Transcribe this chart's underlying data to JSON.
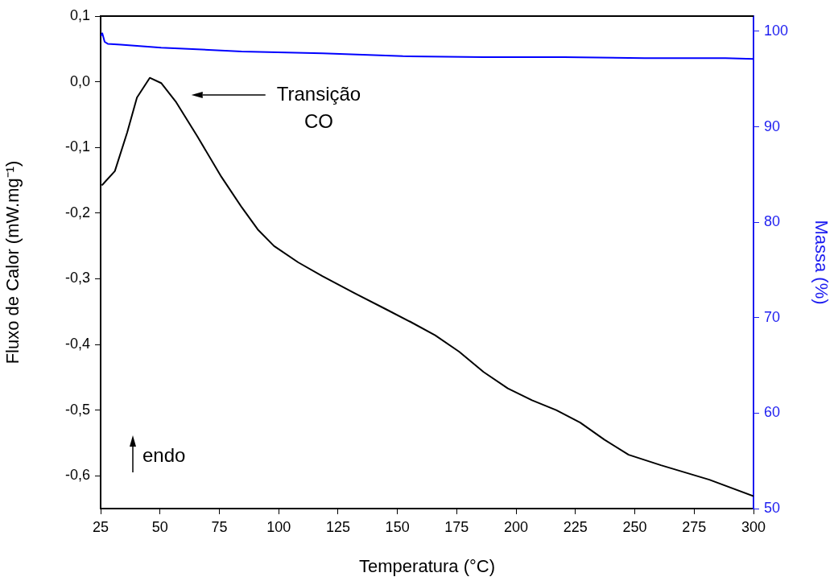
{
  "chart_data": {
    "type": "line",
    "xlabel": "Temperatura (°C)",
    "ylabel": "Fluxo de Calor (mW.mg⁻¹)",
    "y2label": "Massa (%)",
    "xlim": [
      25,
      300
    ],
    "xticks": [
      25,
      50,
      75,
      100,
      125,
      150,
      175,
      200,
      225,
      250,
      275,
      300
    ],
    "ylim": [
      -0.65,
      0.1
    ],
    "yticks": [
      {
        "value": -0.6,
        "label": "-0,6"
      },
      {
        "value": -0.5,
        "label": "-0,5"
      },
      {
        "value": -0.4,
        "label": "-0,4"
      },
      {
        "value": -0.3,
        "label": "-0,3"
      },
      {
        "value": -0.2,
        "label": "-0,2"
      },
      {
        "value": -0.1,
        "label": "-0,1"
      },
      {
        "value": 0,
        "label": "0,0"
      },
      {
        "value": 0.1,
        "label": "0,1"
      }
    ],
    "y2lim": [
      50,
      101.6
    ],
    "y2ticks": [
      50,
      60,
      70,
      80,
      90,
      100
    ],
    "grid": false,
    "legend": false,
    "marker": "none",
    "line_style": "solid",
    "series": [
      {
        "color": "#000000",
        "x": [
          25.7,
          31,
          36.2,
          40.3,
          45.7,
          50.5,
          56.6,
          65.7,
          75.9,
          84.4,
          91.2,
          98,
          108.2,
          118.4,
          132,
          145.5,
          155.7,
          165.9,
          176,
          186.3,
          196.5,
          206.7,
          216.9,
          227,
          237.2,
          247.4,
          261,
          281.4,
          300
        ],
        "values": [
          -0.157,
          -0.136,
          -0.077,
          -0.024,
          0.006,
          -0.002,
          -0.03,
          -0.083,
          -0.145,
          -0.191,
          -0.225,
          -0.25,
          -0.275,
          -0.296,
          -0.322,
          -0.347,
          -0.366,
          -0.386,
          -0.411,
          -0.442,
          -0.467,
          -0.485,
          -0.5,
          -0.519,
          -0.545,
          -0.568,
          -0.584,
          -0.606,
          -0.631
        ]
      },
      {
        "color": "#0000ff",
        "axis": "y2",
        "x": [
          25.3,
          25.7,
          26,
          26.7,
          28,
          33.5,
          50.5,
          84.4,
          118.4,
          152.3,
          186.3,
          220.2,
          254.2,
          288.2,
          300
        ],
        "values": [
          99.6,
          99.8,
          99.8,
          98.9,
          98.7,
          98.6,
          98.3,
          97.9,
          97.7,
          97.4,
          97.3,
          97.3,
          97.2,
          97.2,
          97.1
        ]
      }
    ],
    "annotations": [
      "Transição\nCO",
      "endo"
    ]
  }
}
